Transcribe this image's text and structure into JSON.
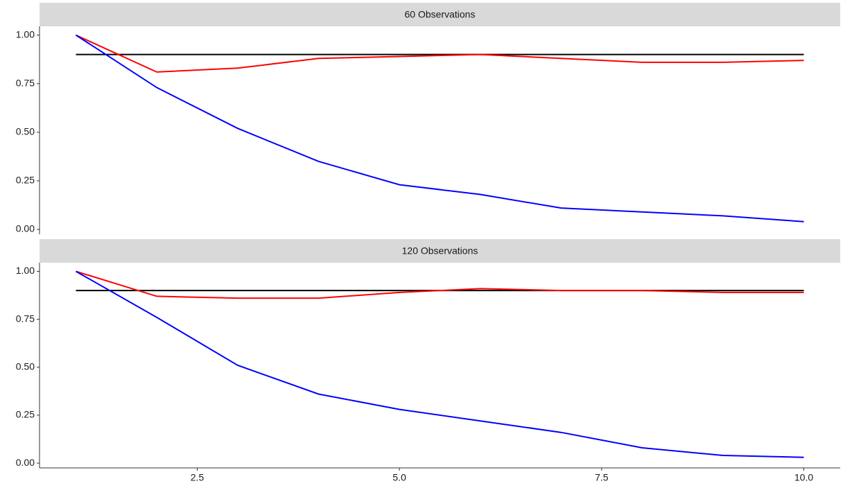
{
  "chart_data": [
    {
      "type": "line",
      "title": "60 Observations",
      "x": [
        1,
        2,
        3,
        4,
        5,
        6,
        7,
        8,
        9,
        10
      ],
      "series": [
        {
          "color": "#000000",
          "values": [
            0.9,
            0.9,
            0.9,
            0.9,
            0.9,
            0.9,
            0.9,
            0.9,
            0.9,
            0.9
          ]
        },
        {
          "color": "#ff0000",
          "values": [
            1.0,
            0.81,
            0.83,
            0.88,
            0.89,
            0.9,
            0.88,
            0.86,
            0.86,
            0.87
          ]
        },
        {
          "color": "#0000ff",
          "values": [
            1.0,
            0.73,
            0.52,
            0.35,
            0.23,
            0.18,
            0.11,
            0.09,
            0.07,
            0.04
          ]
        }
      ],
      "xlim": [
        0.55,
        10.45
      ],
      "ylim": [
        -0.025,
        1.045
      ],
      "yticks": [
        {
          "value": 0,
          "label": "0.00"
        },
        {
          "value": 0.25,
          "label": "0.25"
        },
        {
          "value": 0.5,
          "label": "0.50"
        },
        {
          "value": 0.75,
          "label": "0.75"
        },
        {
          "value": 1,
          "label": "1.00"
        }
      ]
    },
    {
      "type": "line",
      "title": "120 Observations",
      "x": [
        1,
        2,
        3,
        4,
        5,
        6,
        7,
        8,
        9,
        10
      ],
      "series": [
        {
          "color": "#000000",
          "values": [
            0.9,
            0.9,
            0.9,
            0.9,
            0.9,
            0.9,
            0.9,
            0.9,
            0.9,
            0.9
          ]
        },
        {
          "color": "#ff0000",
          "values": [
            1.0,
            0.87,
            0.86,
            0.86,
            0.89,
            0.91,
            0.9,
            0.9,
            0.89,
            0.89
          ]
        },
        {
          "color": "#0000ff",
          "values": [
            1.0,
            0.76,
            0.51,
            0.36,
            0.28,
            0.22,
            0.16,
            0.08,
            0.04,
            0.03
          ]
        }
      ],
      "xlim": [
        0.55,
        10.45
      ],
      "ylim": [
        -0.025,
        1.045
      ],
      "yticks": [
        {
          "value": 0,
          "label": "0.00"
        },
        {
          "value": 0.25,
          "label": "0.25"
        },
        {
          "value": 0.5,
          "label": "0.50"
        },
        {
          "value": 0.75,
          "label": "0.75"
        },
        {
          "value": 1,
          "label": "1.00"
        }
      ],
      "xticks": [
        2.5,
        {
          "value": 5,
          "label": "5.0"
        },
        {
          "value": 7.5,
          "label": "7.5"
        },
        {
          "value": 10,
          "label": "10.0"
        }
      ]
    }
  ]
}
